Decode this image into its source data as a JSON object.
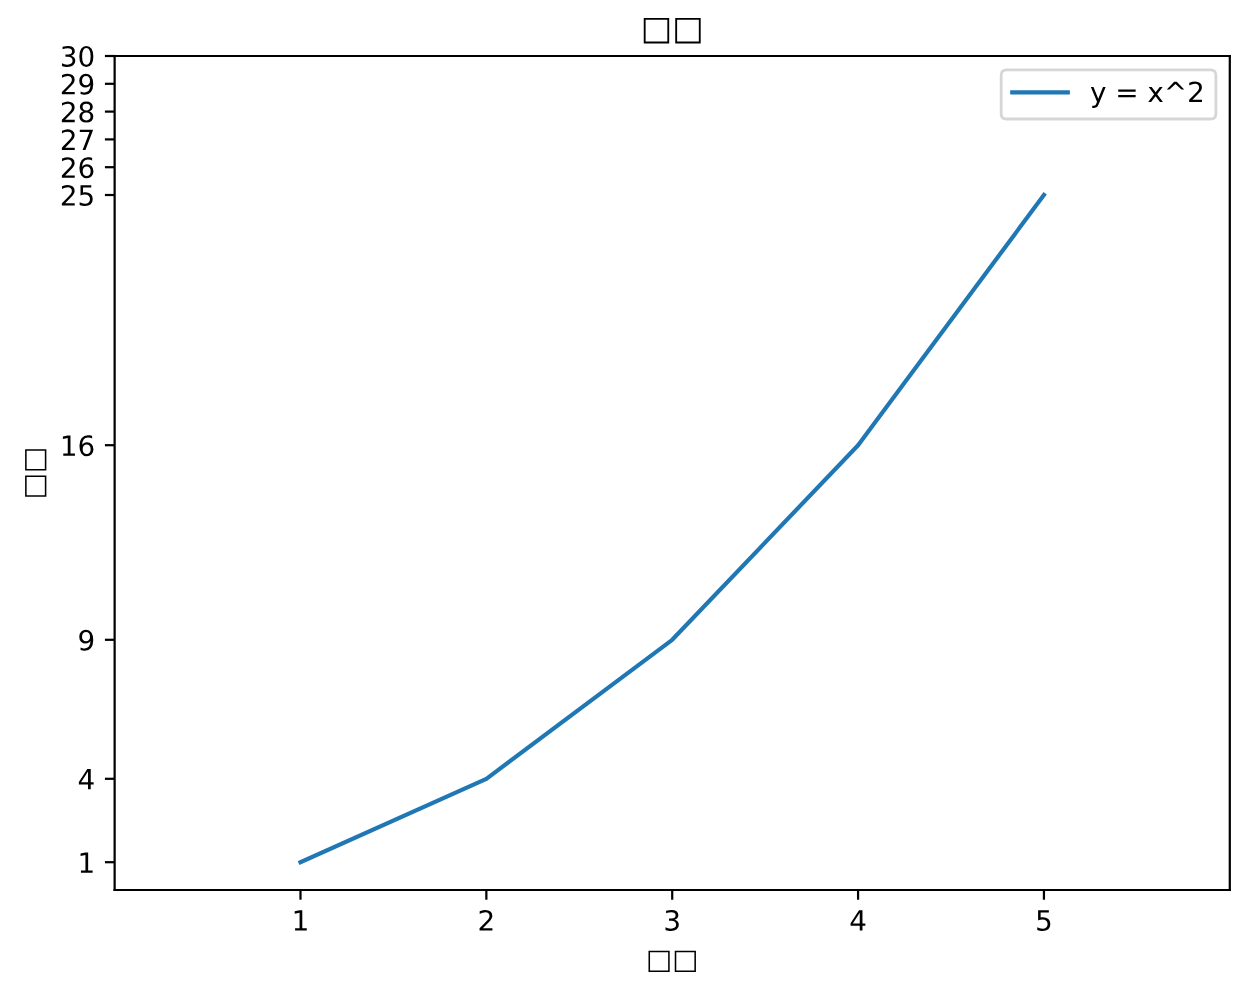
{
  "chart_data": {
    "type": "line",
    "title": "□□",
    "xlabel": "□□",
    "ylabel": "□□",
    "x": [
      1,
      2,
      3,
      4,
      5
    ],
    "series": [
      {
        "name": "y = x^2",
        "color": "#1f77b4",
        "values": [
          1,
          4,
          9,
          16,
          25
        ]
      }
    ],
    "xlim": [
      0,
      6
    ],
    "xticks": [
      1,
      2,
      3,
      4,
      5
    ],
    "ylim": [
      0,
      30
    ],
    "yticks": [
      1,
      4,
      9,
      16,
      25,
      26,
      27,
      28,
      29,
      30
    ],
    "legend": "top right",
    "grid": false,
    "marker": "none",
    "line_style": "solid"
  }
}
